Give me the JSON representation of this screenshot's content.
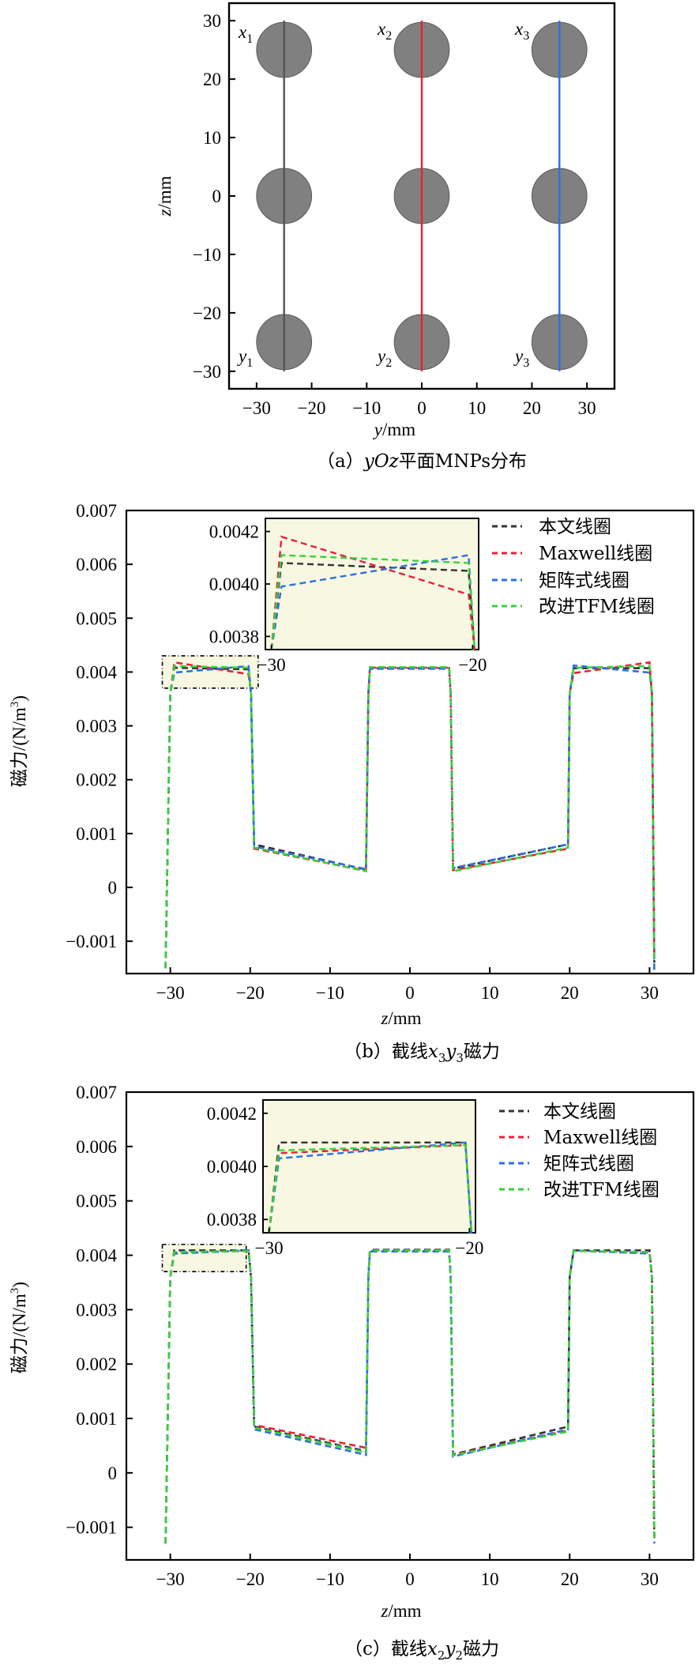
{
  "panels": {
    "a": {
      "caption_prefix": "（a）",
      "caption_math": "yOz",
      "caption_text": "平面MNPs分布",
      "xlabel_var": "y",
      "xlabel_unit": "/mm",
      "ylabel_var": "z",
      "ylabel_unit": "/mm",
      "line_labels": [
        {
          "top": "x",
          "top_sub": "1",
          "bottom": "y",
          "bottom_sub": "1"
        },
        {
          "top": "x",
          "top_sub": "2",
          "bottom": "y",
          "bottom_sub": "2"
        },
        {
          "top": "x",
          "top_sub": "3",
          "bottom": "y",
          "bottom_sub": "3"
        }
      ]
    },
    "b": {
      "caption_prefix": "（b）",
      "caption_text": "截线",
      "caption_math1": "x",
      "caption_sub1": "3",
      "caption_math2": "y",
      "caption_sub2": "3",
      "caption_suffix": "磁力"
    },
    "c": {
      "caption_prefix": "（c）",
      "caption_text": "截线",
      "caption_math1": "x",
      "caption_sub1": "2",
      "caption_math2": "y",
      "caption_sub2": "2",
      "caption_suffix": "磁力"
    },
    "xlabel_var": "z",
    "xlabel_unit": "/mm",
    "ylabel": "磁力/(N/m",
    "ylabel_sup": "3",
    "ylabel_end": ")",
    "legend": [
      "本文线圈",
      "Maxwell线圈",
      "矩阵式线圈",
      "改进TFM线圈"
    ]
  },
  "colors": {
    "series": [
      "#333333",
      "#e8203a",
      "#2c6fe6",
      "#3ad13a"
    ],
    "particle": "#808080",
    "line_x1": "#555555",
    "line_x2": "#e8203a",
    "line_x3": "#2c6fe6",
    "inset_bg": "#f8f8e2"
  },
  "chart_data": [
    {
      "type": "scatter",
      "xlabel": "y/mm",
      "ylabel": "z/mm",
      "xlim": [
        -35,
        35
      ],
      "ylim": [
        -33,
        33
      ],
      "xticks": [
        -30,
        -20,
        -10,
        0,
        10,
        20,
        30
      ],
      "yticks": [
        30,
        20,
        10,
        0,
        -10,
        -20,
        -30
      ],
      "particles": [
        {
          "y": -25,
          "z": 25
        },
        {
          "y": 0,
          "z": 25
        },
        {
          "y": 25,
          "z": 25
        },
        {
          "y": -25,
          "z": 0
        },
        {
          "y": 0,
          "z": 0
        },
        {
          "y": 25,
          "z": 0
        },
        {
          "y": -25,
          "z": -25
        },
        {
          "y": 0,
          "z": -25
        },
        {
          "y": 25,
          "z": -25
        }
      ],
      "particle_radius": 5,
      "lines": [
        {
          "name": "x1y1",
          "y": -25,
          "z": [
            -30,
            30
          ]
        },
        {
          "name": "x2y2",
          "y": 0,
          "z": [
            -30,
            30
          ]
        },
        {
          "name": "x3y3",
          "y": 25,
          "z": [
            -30,
            30
          ]
        }
      ]
    },
    {
      "type": "line",
      "xlabel": "z/mm",
      "ylabel": "磁力/(N/m3)",
      "xlim": [
        -35.5,
        35.5
      ],
      "ylim": [
        -0.0016,
        0.007
      ],
      "xticks": [
        -30,
        -20,
        -10,
        0,
        10,
        20,
        30
      ],
      "yticks": [
        0.007,
        0.006,
        0.005,
        0.004,
        0.003,
        0.002,
        0.001,
        0,
        -0.001
      ],
      "ytick_labels": [
        "0.007",
        "0.006",
        "0.005",
        "0.004",
        "0.003",
        "0.002",
        "0.001",
        "0",
        "-0.001"
      ],
      "legend": [
        "本文线圈",
        "Maxwell线圈",
        "矩阵式线圈",
        "改进TFM线圈"
      ],
      "series": [
        {
          "name": "本文线圈",
          "x": [
            -30.6,
            -30.0,
            -29.5,
            -20.2,
            -19.9,
            -19.5,
            -5.5,
            -5.2,
            -5.0,
            4.9,
            5.1,
            5.4,
            19.8,
            20.0,
            20.5,
            30.0,
            30.3,
            30.6
          ],
          "y": [
            -0.0015,
            0.0036,
            0.00408,
            0.00405,
            0.0036,
            0.0008,
            0.00033,
            0.0036,
            0.00407,
            0.00407,
            0.0036,
            0.00035,
            0.0008,
            0.0036,
            0.00407,
            0.00407,
            0.0036,
            -0.0014
          ]
        },
        {
          "name": "Maxwell线圈",
          "x": [
            -30.6,
            -30.0,
            -29.5,
            -20.2,
            -19.9,
            -19.5,
            -5.5,
            -5.2,
            -5.0,
            4.9,
            5.1,
            5.4,
            19.8,
            20.0,
            20.5,
            30.0,
            30.3,
            30.6
          ],
          "y": [
            -0.0015,
            0.0036,
            0.00418,
            0.00396,
            0.0036,
            0.00072,
            0.00031,
            0.0036,
            0.00408,
            0.00408,
            0.0036,
            0.00032,
            0.00072,
            0.0036,
            0.00398,
            0.00418,
            0.0036,
            -0.0013
          ]
        },
        {
          "name": "矩阵式线圈",
          "x": [
            -30.6,
            -30.0,
            -29.5,
            -20.2,
            -19.9,
            -19.5,
            -5.5,
            -5.2,
            -5.0,
            4.9,
            5.1,
            5.4,
            19.8,
            20.0,
            20.5,
            30.0,
            30.3,
            30.6
          ],
          "y": [
            -0.0015,
            0.0036,
            0.00399,
            0.00411,
            0.0036,
            0.00076,
            0.00034,
            0.0036,
            0.00406,
            0.00406,
            0.0036,
            0.00036,
            0.0008,
            0.0036,
            0.00412,
            0.00399,
            0.0036,
            -0.0016
          ]
        },
        {
          "name": "改进TFM线圈",
          "x": [
            -30.6,
            -30.0,
            -29.5,
            -20.2,
            -19.9,
            -19.5,
            -5.5,
            -5.2,
            -5.0,
            4.9,
            5.1,
            5.4,
            19.8,
            20.0,
            20.5,
            30.0,
            30.3,
            30.6
          ],
          "y": [
            -0.0015,
            0.0036,
            0.00411,
            0.00408,
            0.0036,
            0.00074,
            0.0003,
            0.0036,
            0.00409,
            0.00409,
            0.0036,
            0.0003,
            0.00074,
            0.0036,
            0.00408,
            0.00411,
            0.0036,
            -0.0014
          ]
        }
      ],
      "inset": {
        "xlim": [
          -30.3,
          -19.7
        ],
        "ylim": [
          0.00375,
          0.00425
        ],
        "xticks": [
          -30,
          -20
        ],
        "yticks": [
          0.0042,
          0.004,
          0.0038
        ],
        "ytick_labels": [
          "0.0042",
          "0.0040",
          "0.0038"
        ],
        "zoom_box": {
          "x": [
            -31,
            -19
          ],
          "y": [
            0.0037,
            0.0043
          ]
        }
      }
    },
    {
      "type": "line",
      "xlabel": "z/mm",
      "ylabel": "磁力/(N/m3)",
      "xlim": [
        -35.5,
        35.5
      ],
      "ylim": [
        -0.0016,
        0.007
      ],
      "xticks": [
        -30,
        -20,
        -10,
        0,
        10,
        20,
        30
      ],
      "yticks": [
        0.007,
        0.006,
        0.005,
        0.004,
        0.003,
        0.002,
        0.001,
        0,
        -0.001
      ],
      "ytick_labels": [
        "0.007",
        "0.006",
        "0.005",
        "0.004",
        "0.003",
        "0.002",
        "0.001",
        "0",
        "-0.001"
      ],
      "legend": [
        "本文线圈",
        "Maxwell线圈",
        "矩阵式线圈",
        "改进TFM线圈"
      ],
      "series": [
        {
          "name": "本文线圈",
          "x": [
            -30.6,
            -30.0,
            -29.5,
            -20.2,
            -19.9,
            -19.5,
            -5.5,
            -5.2,
            -5.0,
            4.9,
            5.1,
            5.4,
            19.8,
            20.0,
            20.5,
            30.0,
            30.3,
            30.6
          ],
          "y": [
            -0.0013,
            0.0036,
            0.00409,
            0.00409,
            0.0036,
            0.00085,
            0.0004,
            0.0036,
            0.0041,
            0.0041,
            0.0036,
            0.00034,
            0.00085,
            0.0036,
            0.00409,
            0.00409,
            0.0036,
            -0.0012
          ]
        },
        {
          "name": "Maxwell线圈",
          "x": [
            -30.6,
            -30.0,
            -29.5,
            -20.2,
            -19.9,
            -19.5,
            -5.5,
            -5.2,
            -5.0,
            4.9,
            5.1,
            5.4,
            19.8,
            20.0,
            20.5,
            30.0,
            30.3,
            30.6
          ],
          "y": [
            -0.0013,
            0.0036,
            0.00405,
            0.00408,
            0.0036,
            0.00088,
            0.00046,
            0.0036,
            0.00408,
            0.00408,
            0.0036,
            0.00033,
            0.00078,
            0.0036,
            0.00408,
            0.00405,
            0.0036,
            -0.0012
          ]
        },
        {
          "name": "矩阵式线圈",
          "x": [
            -30.6,
            -30.0,
            -29.5,
            -20.2,
            -19.9,
            -19.5,
            -5.5,
            -5.2,
            -5.0,
            4.9,
            5.1,
            5.4,
            19.8,
            20.0,
            20.5,
            30.0,
            30.3,
            30.6
          ],
          "y": [
            -0.0013,
            0.0036,
            0.00403,
            0.00409,
            0.0036,
            0.0008,
            0.00033,
            0.0036,
            0.00407,
            0.00407,
            0.0036,
            0.0003,
            0.0008,
            0.0036,
            0.00409,
            0.00403,
            0.0036,
            -0.0013
          ]
        },
        {
          "name": "改进TFM线圈",
          "x": [
            -30.6,
            -30.0,
            -29.5,
            -20.2,
            -19.9,
            -19.5,
            -5.5,
            -5.2,
            -5.0,
            4.9,
            5.1,
            5.4,
            19.8,
            20.0,
            20.5,
            30.0,
            30.3,
            30.6
          ],
          "y": [
            -0.0013,
            0.0036,
            0.00406,
            0.00408,
            0.0036,
            0.00083,
            0.00038,
            0.0036,
            0.00409,
            0.00409,
            0.0036,
            0.00032,
            0.00076,
            0.0036,
            0.00408,
            0.00406,
            0.0036,
            -0.0012
          ]
        }
      ],
      "inset": {
        "xlim": [
          -30.3,
          -19.7
        ],
        "ylim": [
          0.00375,
          0.00425
        ],
        "xticks": [
          -30,
          -20
        ],
        "yticks": [
          0.0042,
          0.004,
          0.0038
        ],
        "ytick_labels": [
          "0.0042",
          "0.0040",
          "0.0038"
        ],
        "zoom_box": {
          "x": [
            -31,
            -20.5
          ],
          "y": [
            0.0037,
            0.0042
          ]
        }
      }
    }
  ]
}
